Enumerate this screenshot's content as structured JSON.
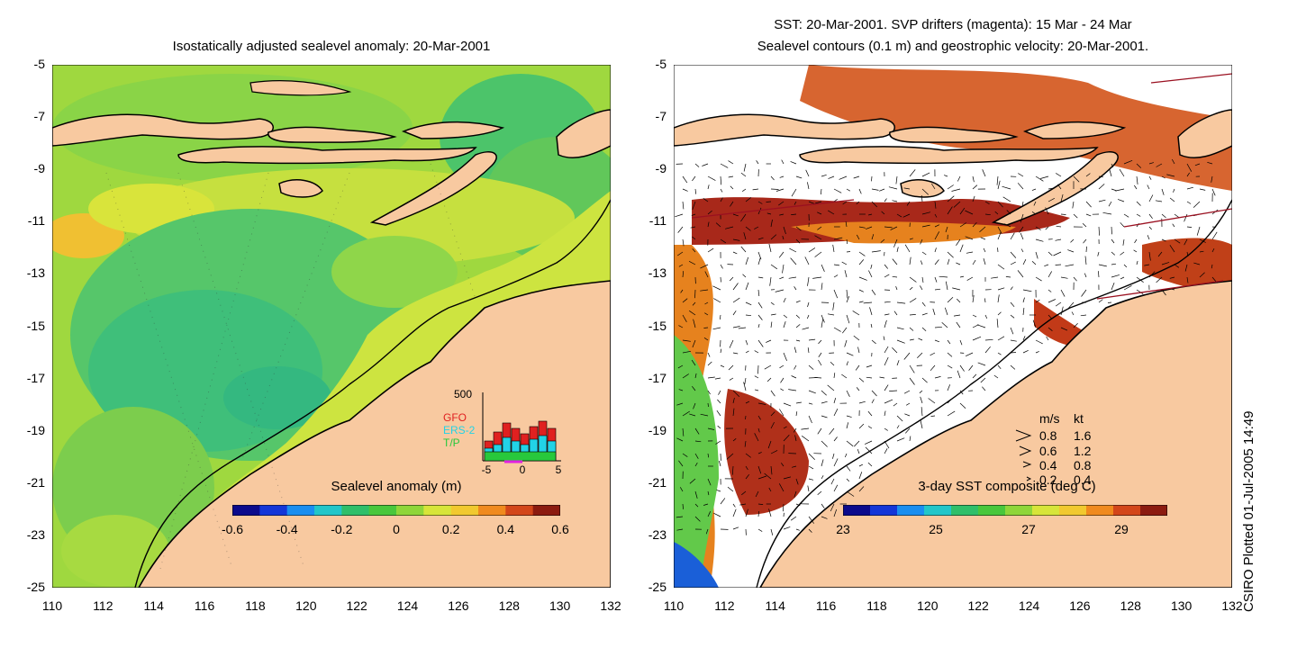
{
  "left_panel": {
    "title": "Isostatically adjusted sealevel anomaly: 20-Mar-2001",
    "colorbar": {
      "title": "Sealevel anomaly (m)",
      "ticks": [
        "-0.6",
        "-0.4",
        "-0.2",
        "0",
        "0.2",
        "0.4",
        "0.6"
      ],
      "colors": [
        "#0b0a8c",
        "#1436d8",
        "#1a8ef0",
        "#22c6c9",
        "#2fbf6a",
        "#49c73c",
        "#8fd63a",
        "#d7e53a",
        "#f1c92f",
        "#f08a1e",
        "#d3461a",
        "#8c1b10"
      ]
    },
    "inset": {
      "ymax_label": "500",
      "legend": [
        {
          "label": "GFO",
          "color": "#e02020"
        },
        {
          "label": "ERS-2",
          "color": "#22d3e6"
        },
        {
          "label": "T/P",
          "color": "#28c83c"
        }
      ],
      "x_ticks": [
        "-5",
        "0",
        "5"
      ]
    }
  },
  "right_panel": {
    "title_line1": "SST: 20-Mar-2001. SVP drifters (magenta): 15 Mar - 24 Mar",
    "title_line2": "Sealevel contours (0.1 m) and geostrophic velocity: 20-Mar-2001.",
    "colorbar": {
      "title": "3-day SST composite (deg C)",
      "ticks": [
        "23",
        "25",
        "27",
        "29"
      ],
      "colors": [
        "#0b0a8c",
        "#1436d8",
        "#1a8ef0",
        "#22c6c9",
        "#2fbf6a",
        "#49c73c",
        "#8fd63a",
        "#d7e53a",
        "#f1c92f",
        "#f08a1e",
        "#d3461a",
        "#8c1b10"
      ]
    },
    "velocity_legend": {
      "header_ms": "m/s",
      "header_kt": "kt",
      "rows": [
        {
          "ms": "0.8",
          "kt": "1.6"
        },
        {
          "ms": "0.6",
          "kt": "1.2"
        },
        {
          "ms": "0.4",
          "kt": "0.8"
        },
        {
          "ms": "0.2",
          "kt": "0.4"
        }
      ]
    }
  },
  "axes": {
    "lon_ticks": [
      "110",
      "112",
      "114",
      "116",
      "118",
      "120",
      "122",
      "124",
      "126",
      "128",
      "130",
      "132"
    ],
    "lat_ticks": [
      "-5",
      "-7",
      "-9",
      "-11",
      "-13",
      "-15",
      "-17",
      "-19",
      "-21",
      "-23",
      "-25"
    ]
  },
  "credit": "CSIRO Plotted 01-Jul-2005 14:49",
  "colors": {
    "land": "#f8c9a0",
    "ocean_green": "#7fd04a",
    "ocean_yellow": "#c9e23e",
    "ocean_teal": "#3fc27c",
    "sst_red": "#b02a14",
    "sst_orange": "#e07a1e"
  }
}
